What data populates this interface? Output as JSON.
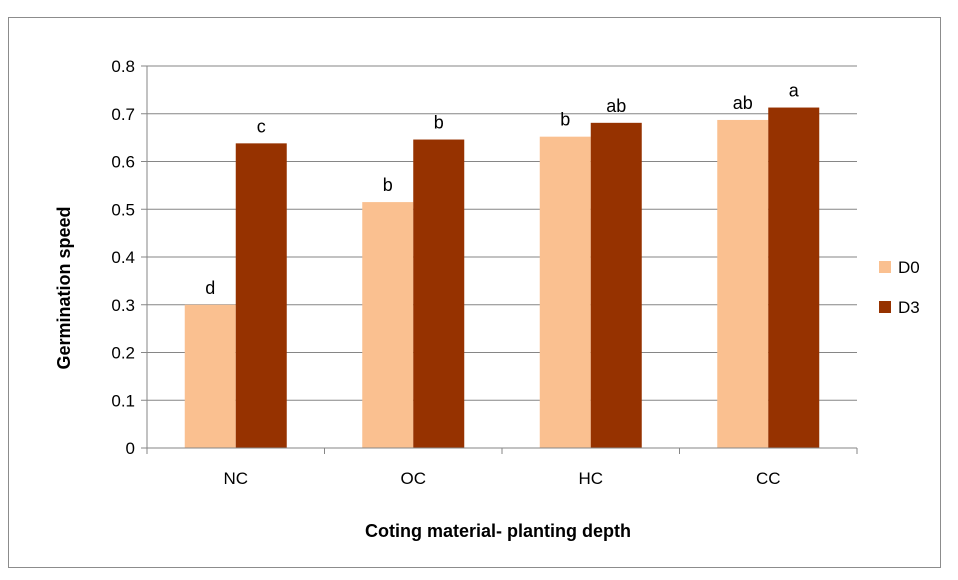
{
  "chart_data": {
    "type": "bar",
    "title": "",
    "xlabel": "Coting material- planting depth",
    "ylabel": "Germination speed",
    "categories": [
      "NC",
      "OC",
      "HC",
      "CC"
    ],
    "ylim": [
      0,
      0.8
    ],
    "yticks": [
      "0",
      "0.1",
      "0.2",
      "0.3",
      "0.4",
      "0.5",
      "0.6",
      "0.7",
      "0.8"
    ],
    "grid": true,
    "legend_position": "right",
    "series": [
      {
        "name": "D0",
        "color": "#FAC090",
        "values": [
          0.3,
          0.515,
          0.652,
          0.687
        ],
        "labels": [
          "d",
          "b",
          "b",
          "ab"
        ]
      },
      {
        "name": "D3",
        "color": "#963200",
        "values": [
          0.638,
          0.646,
          0.681,
          0.713
        ],
        "labels": [
          "c",
          "b",
          "ab",
          "a"
        ]
      }
    ]
  }
}
